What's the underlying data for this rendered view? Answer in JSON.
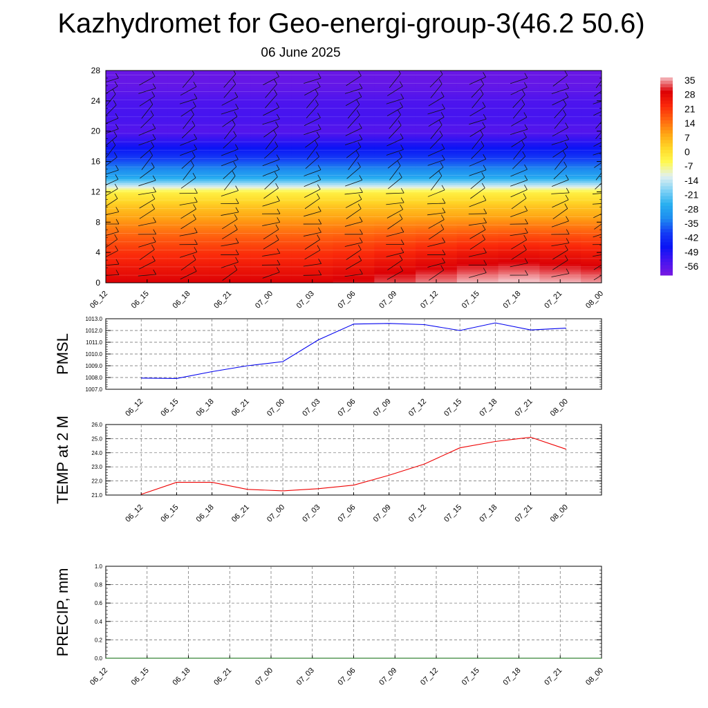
{
  "title": "Kazhydromet for Geo-energi-group-3(46.2 50.6)",
  "subtitle": "06 June 2025",
  "chart_data": [
    {
      "type": "heatmap",
      "panel": "temperature-height",
      "x_ticks": [
        "06_12",
        "06_15",
        "06_18",
        "06_21",
        "07_00",
        "07_03",
        "07_06",
        "07_09",
        "07_12",
        "07_15",
        "07_18",
        "07_21",
        "08_00"
      ],
      "y_ticks": [
        0,
        4,
        8,
        12,
        16,
        20,
        24,
        28
      ],
      "ylim": [
        0,
        28
      ],
      "colorbar": {
        "labels": [
          "35",
          "28",
          "21",
          "14",
          "7",
          "0",
          "-7",
          "-14",
          "-21",
          "-28",
          "-35",
          "-42",
          "-49",
          "-56"
        ],
        "range": [
          -63,
          35
        ]
      },
      "levels_y": [
        0,
        2,
        4,
        6,
        8,
        10,
        12,
        13,
        14,
        16,
        18,
        20,
        22,
        24,
        26,
        28
      ],
      "profile_by_level": [
        28,
        24,
        20,
        15,
        9,
        3,
        -5,
        -18,
        -30,
        -40,
        -50,
        -58,
        -56,
        -57,
        -60,
        -61
      ],
      "column_warm_anomaly": [
        0,
        0,
        0,
        0,
        0,
        0,
        1,
        3,
        5,
        7,
        8,
        7,
        6
      ],
      "wind_barbs": true
    },
    {
      "type": "line",
      "panel": "pmsl",
      "ylabel": "PMSL",
      "x_ticks": [
        "06_12",
        "06_15",
        "06_18",
        "06_21",
        "07_00",
        "07_03",
        "07_06",
        "07_09",
        "07_12",
        "07_15",
        "07_18",
        "07_21",
        "08_00"
      ],
      "y_ticks": [
        "1007.0",
        "1008.0",
        "1009.0",
        "1010.0",
        "1011.0",
        "1012.0",
        "1013.0"
      ],
      "ylim": [
        1007,
        1013
      ],
      "xlim": [
        -1,
        13
      ],
      "series": [
        {
          "x": [
            0,
            1,
            2,
            3,
            4,
            5,
            6,
            7,
            8,
            9,
            10,
            11,
            12
          ],
          "values": [
            1007.95,
            1007.92,
            1008.5,
            1009.0,
            1009.35,
            1011.2,
            1012.55,
            1012.6,
            1012.5,
            1012.0,
            1012.65,
            1012.05,
            1012.2
          ],
          "color": "#0000ee"
        }
      ],
      "grid": true
    },
    {
      "type": "line",
      "panel": "temp2m",
      "ylabel": "TEMP at 2 M",
      "x_ticks": [
        "06_12",
        "06_15",
        "06_18",
        "06_21",
        "07_00",
        "07_03",
        "07_06",
        "07_09",
        "07_12",
        "07_15",
        "07_18",
        "07_21",
        "08_00"
      ],
      "y_ticks": [
        "21.0",
        "22.0",
        "23.0",
        "24.0",
        "25.0",
        "26.0"
      ],
      "ylim": [
        21,
        26
      ],
      "xlim": [
        -1,
        13
      ],
      "series": [
        {
          "x": [
            0,
            1,
            2,
            3,
            4,
            5,
            6,
            7,
            8,
            9,
            10,
            11,
            12
          ],
          "values": [
            21.05,
            21.9,
            21.9,
            21.4,
            21.3,
            21.45,
            21.7,
            22.4,
            23.2,
            24.35,
            24.8,
            25.1,
            24.25
          ],
          "color": "#ee0000"
        }
      ],
      "grid": true
    },
    {
      "type": "line",
      "panel": "precip",
      "ylabel": "PRECIP, mm",
      "x_ticks": [
        "06_12",
        "06_15",
        "06_18",
        "06_21",
        "07_00",
        "07_03",
        "07_06",
        "07_09",
        "07_12",
        "07_15",
        "07_18",
        "07_21",
        "08_00"
      ],
      "y_ticks": [
        "0.0",
        "0.2",
        "0.4",
        "0.6",
        "0.8",
        "1.0"
      ],
      "ylim": [
        0,
        1
      ],
      "xlim": [
        0,
        12
      ],
      "series": [
        {
          "x": [
            0,
            1,
            2,
            3,
            4,
            5,
            6,
            7,
            8,
            9,
            10,
            11,
            12
          ],
          "values": [
            0,
            0,
            0,
            0,
            0,
            0,
            0,
            0,
            0,
            0,
            0,
            0,
            0
          ],
          "color": "#006600"
        }
      ],
      "grid": true
    }
  ]
}
